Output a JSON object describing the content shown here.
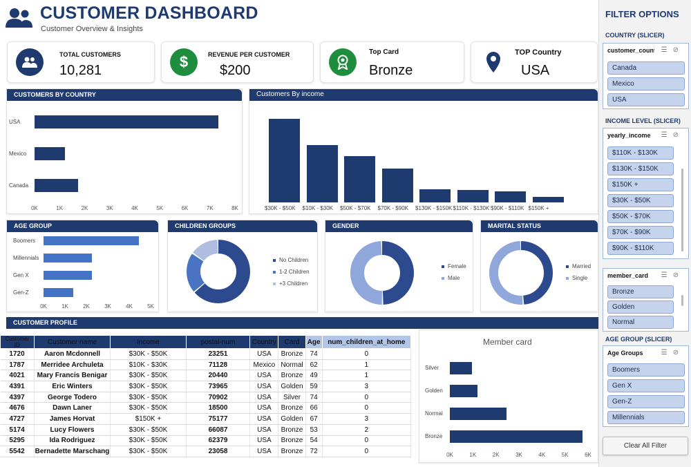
{
  "header": {
    "title": "CUSTOMER DASHBOARD",
    "subtitle": "Customer Overview & Insights",
    "icon": "users-icon"
  },
  "kpis": [
    {
      "label": "TOTAL CUSTOMERS",
      "value": "10,281",
      "icon": "users-icon",
      "color": "#1f3a6e"
    },
    {
      "label": "REVENUE PER CUSTOMER",
      "value": "$200",
      "icon": "dollar-icon",
      "color": "#1e8e3e"
    },
    {
      "label": "Top Card",
      "value": "Bronze",
      "icon": "award-icon",
      "color": "#1e8e3e"
    },
    {
      "label": "TOP Country",
      "value": "USA",
      "icon": "map-pin-icon",
      "color": "#1f3a6e"
    }
  ],
  "sections": {
    "by_country": "CUSTOMERS BY COUNTRY",
    "by_income": "Customers By income",
    "age_group": "AGE GROUP",
    "children": "CHILDREN GROUPS",
    "gender": "GENDER",
    "marital": "MARITAL STATUS",
    "profile": "CUSTOMER PROFILE"
  },
  "chart_data": [
    {
      "type": "bar",
      "orientation": "horizontal",
      "title": "CUSTOMERS BY COUNTRY",
      "categories": [
        "USA",
        "Mexico",
        "Canada"
      ],
      "values": [
        7350,
        1200,
        1730
      ],
      "xlim": [
        0,
        8000
      ],
      "ticks": [
        "0K",
        "1K",
        "2K",
        "3K",
        "4K",
        "5K",
        "6K",
        "7K",
        "8K"
      ]
    },
    {
      "type": "bar",
      "title": "Customers By income",
      "categories": [
        "$30K - $50K",
        "$10K - $30K",
        "$50K - $70K",
        "$70K - $90K",
        "$130K - $150K",
        "$110K - $130K",
        "$90K - $110K",
        "$150K +"
      ],
      "tick_labels": [
        "$30K - $50K",
        "$10K - $30K",
        "$50K - $70K",
        "$70K - $90K",
        "$130K - $150K",
        "$110K - $130K",
        "$90K - $110K",
        "$150K +"
      ],
      "values": [
        2600,
        1780,
        1450,
        1050,
        400,
        390,
        350,
        180
      ],
      "ylim": [
        0,
        2900
      ]
    },
    {
      "type": "bar",
      "orientation": "horizontal",
      "title": "AGE GROUP",
      "categories": [
        "Boomers",
        "Millennials",
        "Gen X",
        "Gen-Z"
      ],
      "values": [
        4450,
        2250,
        2250,
        1400
      ],
      "xlim": [
        0,
        5000
      ],
      "ticks": [
        "0K",
        "1K",
        "2K",
        "3K",
        "4K",
        "5K"
      ]
    },
    {
      "type": "pie",
      "donut": true,
      "title": "CHILDREN GROUPS",
      "labels": [
        "No Children",
        "1-2 Children",
        "+3 Children"
      ],
      "values": [
        64,
        21,
        15
      ],
      "colors": [
        "#2e4a8f",
        "#4a73c4",
        "#aebde0"
      ]
    },
    {
      "type": "pie",
      "donut": true,
      "title": "GENDER",
      "labels": [
        "Female",
        "Male"
      ],
      "values": [
        50,
        50
      ],
      "colors": [
        "#2e4a8f",
        "#8fa7db"
      ]
    },
    {
      "type": "pie",
      "donut": true,
      "title": "MARITAL STATUS",
      "labels": [
        "Married",
        "Single"
      ],
      "values": [
        49,
        51
      ],
      "colors": [
        "#2e4a8f",
        "#8fa7db"
      ]
    },
    {
      "type": "bar",
      "orientation": "horizontal",
      "title": "Member card",
      "categories": [
        "Silver",
        "Golden",
        "Normal",
        "Bronze"
      ],
      "values": [
        950,
        1200,
        2450,
        5750
      ],
      "xlim": [
        0,
        6000
      ],
      "ticks": [
        "0K",
        "1K",
        "2K",
        "3K",
        "4K",
        "5K",
        "6K"
      ]
    }
  ],
  "table": {
    "headers": [
      "Customer ID",
      "Customer name",
      "Income",
      "postal-num",
      "Country",
      "Card",
      "Age",
      "num_children_at_home"
    ],
    "rows": [
      [
        "1720",
        "Aaron Mcdonnell",
        "$30K - $50K",
        "23251",
        "USA",
        "Bronze",
        "74",
        "0"
      ],
      [
        "1787",
        "Merridee Archuleta",
        "$10K - $30K",
        "71128",
        "Mexico",
        "Normal",
        "62",
        "1"
      ],
      [
        "4021",
        "Mary Francis Benigar",
        "$30K - $50K",
        "20440",
        "USA",
        "Bronze",
        "49",
        "1"
      ],
      [
        "4391",
        "Eric Winters",
        "$30K - $50K",
        "73965",
        "USA",
        "Golden",
        "59",
        "3"
      ],
      [
        "4397",
        "George Todero",
        "$30K - $50K",
        "70902",
        "USA",
        "Silver",
        "74",
        "0"
      ],
      [
        "4676",
        "Dawn Laner",
        "$30K - $50K",
        "18500",
        "USA",
        "Bronze",
        "66",
        "0"
      ],
      [
        "4727",
        "James Horvat",
        "$150K +",
        "75177",
        "USA",
        "Golden",
        "67",
        "3"
      ],
      [
        "5174",
        "Lucy Flowers",
        "$30K - $50K",
        "66087",
        "USA",
        "Bronze",
        "53",
        "2"
      ],
      [
        "5295",
        "Ida Rodriguez",
        "$30K - $50K",
        "62379",
        "USA",
        "Bronze",
        "54",
        "0"
      ],
      [
        "5542",
        "Bernadette Marschang",
        "$30K - $50K",
        "23058",
        "USA",
        "Bronze",
        "72",
        "0"
      ]
    ]
  },
  "filters": {
    "title": "FILTER OPTIONS",
    "country": {
      "caption": "COUNTRY (SLICER)",
      "field": "customer_country",
      "items": [
        "Canada",
        "Mexico",
        "USA"
      ]
    },
    "income": {
      "caption": "INCOME LEVEL (SLICER)",
      "field": "yearly_income",
      "items": [
        "$110K - $130K",
        "$130K - $150K",
        "$150K +",
        "$30K - $50K",
        "$50K - $70K",
        "$70K - $90K",
        "$90K - $110K"
      ]
    },
    "card": {
      "field": "member_card",
      "items": [
        "Bronze",
        "Golden",
        "Normal"
      ]
    },
    "age": {
      "caption": "AGE GROUP (SLICER)",
      "field": "Age Groups",
      "items": [
        "Boomers",
        "Gen X",
        "Gen-Z",
        "Millennials"
      ]
    },
    "clear_label": "Clear All Filter"
  }
}
